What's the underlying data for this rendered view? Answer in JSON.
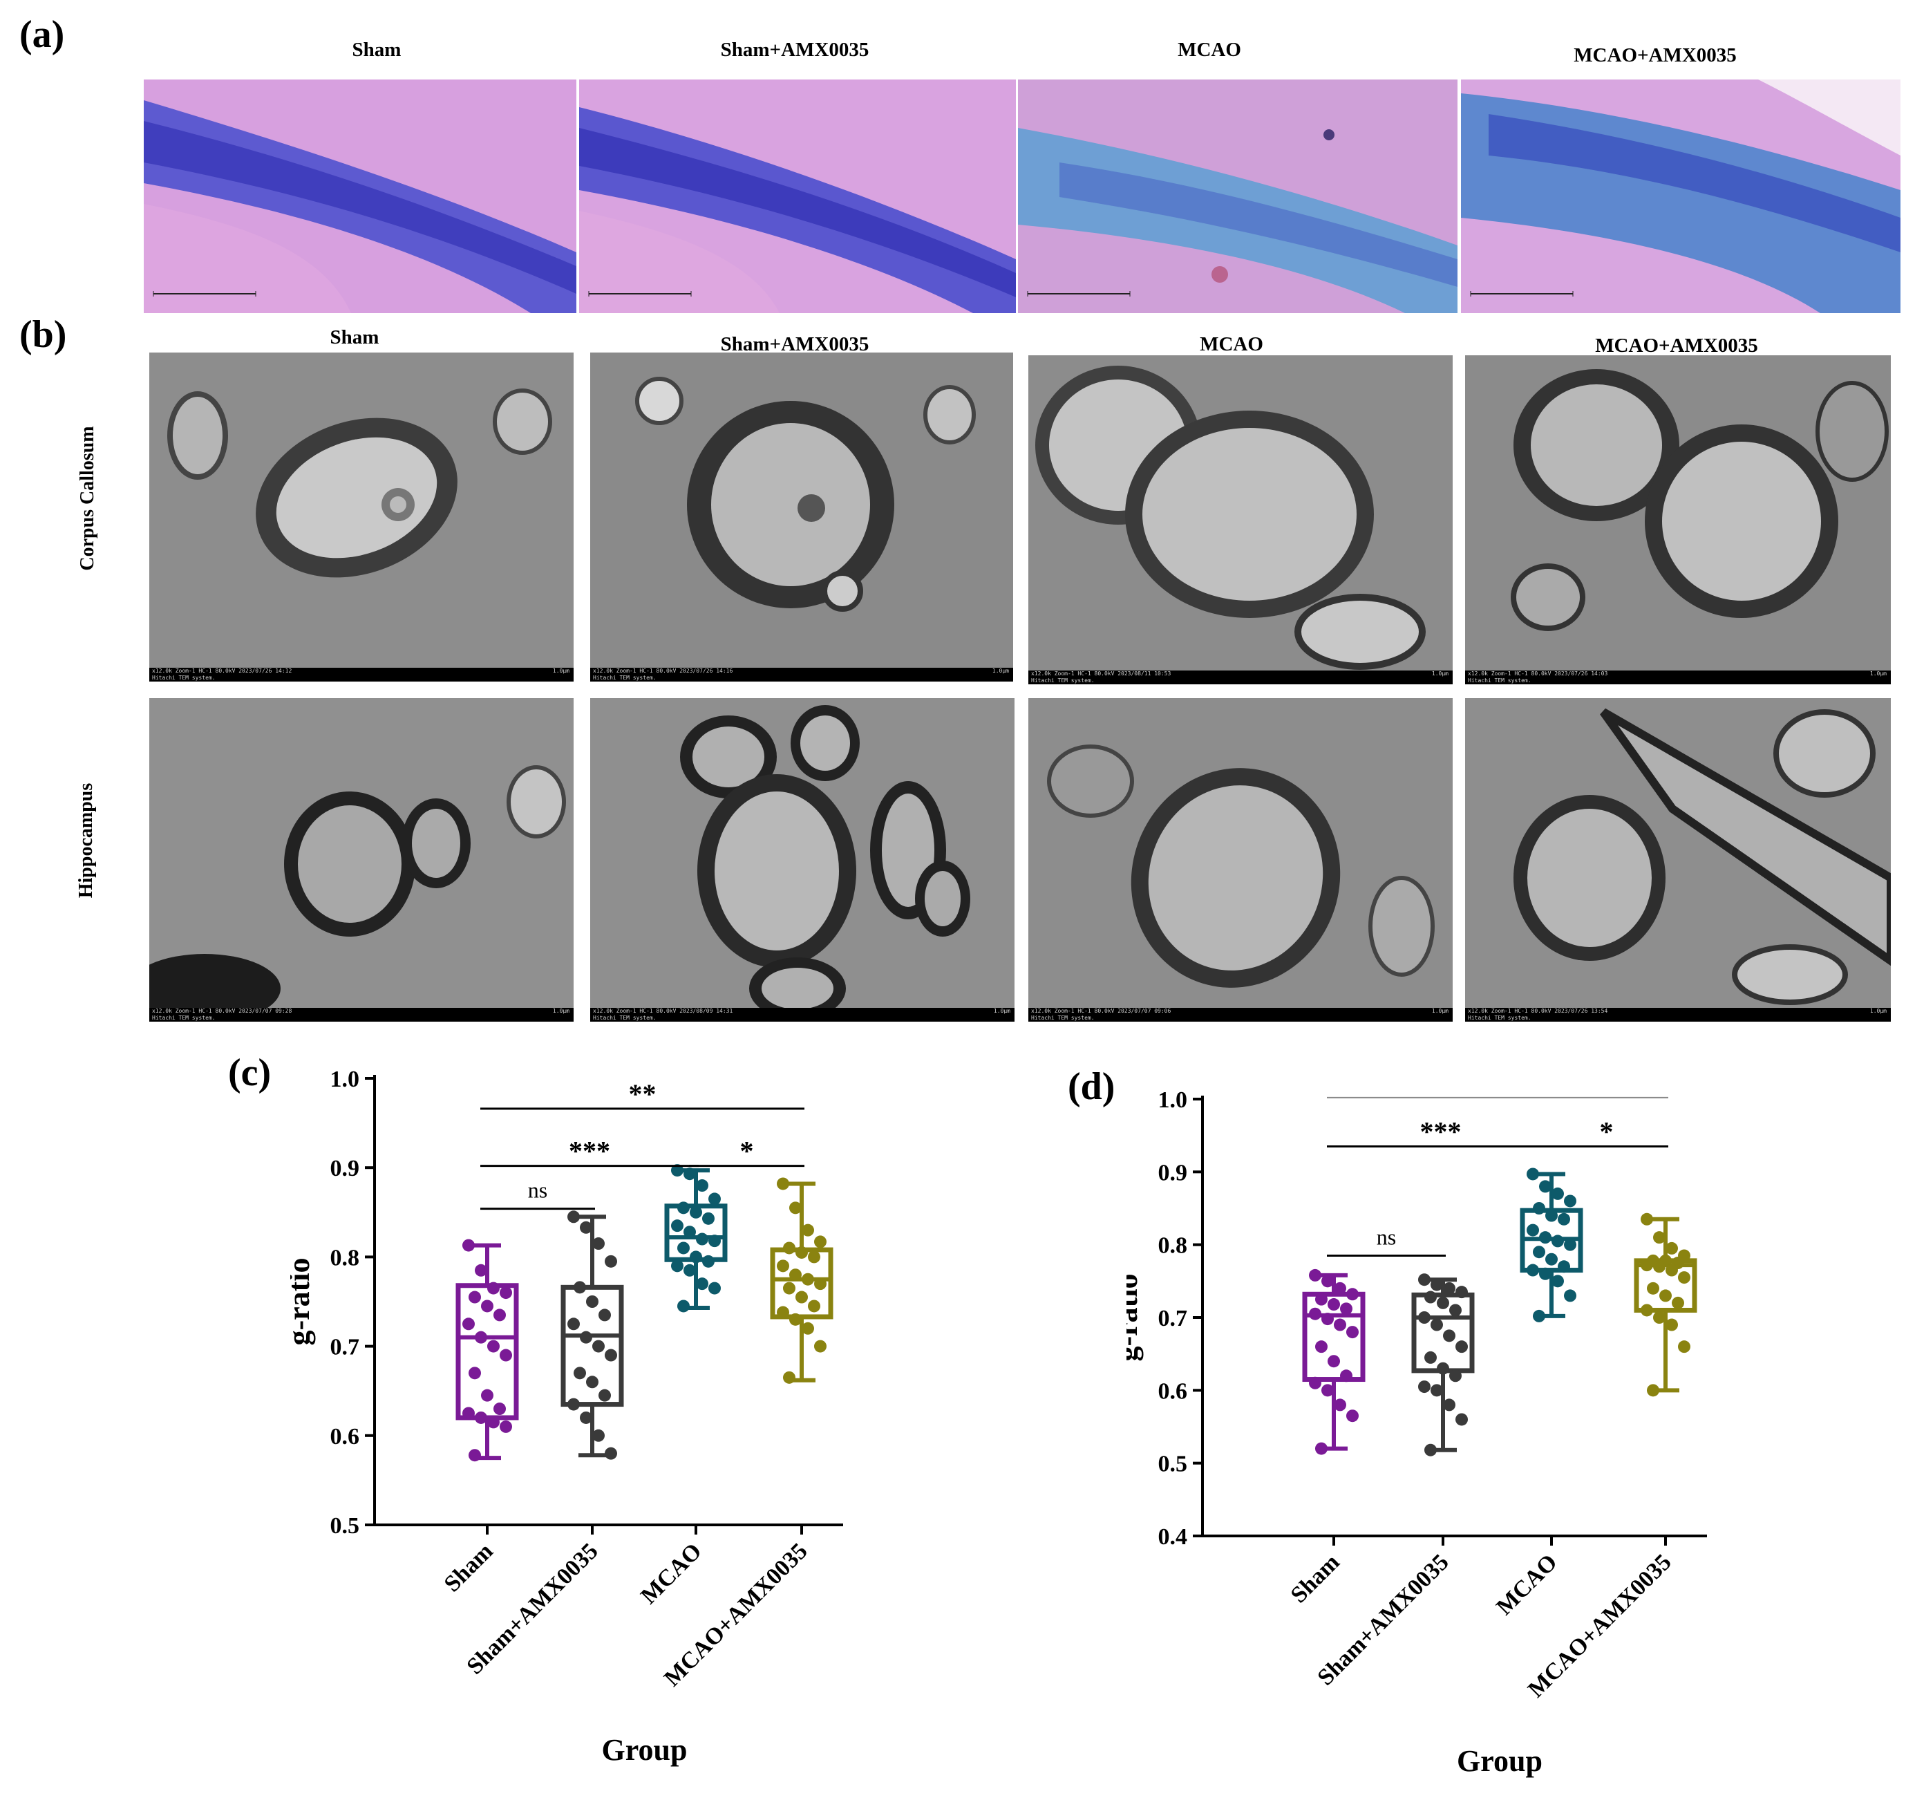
{
  "panel_labels": {
    "a": "(a)",
    "b": "(b)",
    "c": "(c)",
    "d": "(d)"
  },
  "groups": [
    "Sham",
    "Sham+AMX0035",
    "MCAO",
    "MCAO+AMX0035"
  ],
  "panel_a": {
    "titles": [
      "Sham",
      "Sham+AMX0035",
      "MCAO",
      "MCAO+AMX0035"
    ],
    "scale_ticks": [
      "0",
      "20",
      "40",
      "60",
      "80",
      "100µm"
    ]
  },
  "panel_b": {
    "titles": [
      "Sham",
      "Sham+AMX0035",
      "MCAO",
      "MCAO+AMX0035"
    ],
    "row_labels": [
      "Corpus Callosum",
      "Hippocampus"
    ],
    "footers": {
      "cc": [
        "x12.0k Zoom-1 HC-1 80.0kV 2023/07/26 14:12",
        "x12.0k Zoom-1 HC-1 80.0kV 2023/07/26 14:16",
        "x12.0k Zoom-1 HC-1 80.0kV 2023/08/11 10:53",
        "x12.0k Zoom-1 HC-1 80.0kV 2023/07/26 14:03"
      ],
      "hip": [
        "x12.0k Zoom-1 HC-1 80.0kV 2023/07/07 09:28",
        "x12.0k Zoom-1 HC-1 80.0kV 2023/08/09 14:31",
        "x12.0k Zoom-1 HC-1 80.0kV 2023/07/07 09:06",
        "x12.0k Zoom-1 HC-1 80.0kV 2023/07/26 13:54"
      ],
      "system": "Hitachi TEM system.",
      "scale": "1.0µm"
    }
  },
  "colors": {
    "Sham": "#7a1a96",
    "Sham+AMX0035": "#3a3a3a",
    "MCAO": "#0d5a6a",
    "MCAO+AMX0035": "#8a8310"
  },
  "chart_data": [
    {
      "id": "c",
      "type": "box",
      "xlabel": "Group",
      "ylabel": "g-ratio",
      "ylim": [
        0.5,
        1.0
      ],
      "yticks": [
        "0.5",
        "0.6",
        "0.7",
        "0.8",
        "0.9",
        "1.0"
      ],
      "categories": [
        "Sham",
        "Sham+AMX0035",
        "MCAO",
        "MCAO+AMX0035"
      ],
      "boxes": [
        {
          "min": 0.575,
          "q1": 0.62,
          "median": 0.71,
          "q3": 0.768,
          "max": 0.813
        },
        {
          "min": 0.578,
          "q1": 0.635,
          "median": 0.712,
          "q3": 0.766,
          "max": 0.845
        },
        {
          "min": 0.743,
          "q1": 0.797,
          "median": 0.822,
          "q3": 0.857,
          "max": 0.897
        },
        {
          "min": 0.662,
          "q1": 0.733,
          "median": 0.775,
          "q3": 0.808,
          "max": 0.882
        }
      ],
      "points": [
        [
          0.813,
          0.785,
          0.765,
          0.76,
          0.755,
          0.745,
          0.735,
          0.725,
          0.71,
          0.7,
          0.69,
          0.67,
          0.645,
          0.63,
          0.625,
          0.62,
          0.615,
          0.61,
          0.578
        ],
        [
          0.845,
          0.833,
          0.815,
          0.795,
          0.766,
          0.75,
          0.735,
          0.725,
          0.71,
          0.7,
          0.69,
          0.67,
          0.66,
          0.645,
          0.635,
          0.62,
          0.6,
          0.58
        ],
        [
          0.897,
          0.893,
          0.88,
          0.865,
          0.855,
          0.85,
          0.843,
          0.835,
          0.828,
          0.82,
          0.818,
          0.81,
          0.8,
          0.795,
          0.79,
          0.785,
          0.77,
          0.765,
          0.745
        ],
        [
          0.882,
          0.855,
          0.83,
          0.817,
          0.81,
          0.805,
          0.8,
          0.79,
          0.78,
          0.775,
          0.77,
          0.765,
          0.755,
          0.745,
          0.738,
          0.73,
          0.72,
          0.7,
          0.665
        ]
      ],
      "comparisons": [
        {
          "from": 0,
          "to": 1,
          "label": "ns",
          "y": 0.854
        },
        {
          "from": 0,
          "to": 2,
          "label": "***",
          "y": 0.902
        },
        {
          "from": 2,
          "to": 3,
          "label": "*",
          "y": 0.902
        },
        {
          "from": 0,
          "to": 3,
          "label": "**",
          "y": 0.966
        }
      ]
    },
    {
      "id": "d",
      "type": "box",
      "xlabel": "Group",
      "ylabel": "g-ratio",
      "ylim": [
        0.4,
        1.0
      ],
      "yticks": [
        "0.4",
        "0.5",
        "0.6",
        "0.7",
        "0.8",
        "0.9",
        "1.0"
      ],
      "categories": [
        "Sham",
        "Sham+AMX0035",
        "MCAO",
        "MCAO+AMX0035"
      ],
      "boxes": [
        {
          "min": 0.52,
          "q1": 0.615,
          "median": 0.703,
          "q3": 0.732,
          "max": 0.758
        },
        {
          "min": 0.518,
          "q1": 0.627,
          "median": 0.7,
          "q3": 0.731,
          "max": 0.752
        },
        {
          "min": 0.702,
          "q1": 0.765,
          "median": 0.808,
          "q3": 0.847,
          "max": 0.897
        },
        {
          "min": 0.6,
          "q1": 0.71,
          "median": 0.772,
          "q3": 0.778,
          "max": 0.835
        }
      ],
      "points": [
        [
          0.758,
          0.75,
          0.74,
          0.732,
          0.725,
          0.718,
          0.712,
          0.705,
          0.698,
          0.69,
          0.68,
          0.66,
          0.64,
          0.62,
          0.61,
          0.6,
          0.58,
          0.565,
          0.52
        ],
        [
          0.752,
          0.745,
          0.74,
          0.735,
          0.728,
          0.72,
          0.71,
          0.7,
          0.69,
          0.675,
          0.66,
          0.645,
          0.63,
          0.62,
          0.605,
          0.6,
          0.58,
          0.56,
          0.518
        ],
        [
          0.897,
          0.88,
          0.87,
          0.86,
          0.85,
          0.84,
          0.835,
          0.82,
          0.81,
          0.805,
          0.8,
          0.79,
          0.78,
          0.77,
          0.765,
          0.76,
          0.75,
          0.73,
          0.702
        ],
        [
          0.835,
          0.81,
          0.795,
          0.785,
          0.778,
          0.778,
          0.775,
          0.772,
          0.77,
          0.765,
          0.755,
          0.74,
          0.73,
          0.72,
          0.71,
          0.7,
          0.69,
          0.66,
          0.6
        ]
      ],
      "comparisons": [
        {
          "from": 0,
          "to": 1,
          "label": "ns",
          "y": 0.785
        },
        {
          "from": 0,
          "to": 2,
          "label": "***",
          "y": 0.935
        },
        {
          "from": 2,
          "to": 3,
          "label": "*",
          "y": 0.935
        },
        {
          "from": 0,
          "to": 3,
          "label": "",
          "y": 1.002
        }
      ]
    }
  ]
}
